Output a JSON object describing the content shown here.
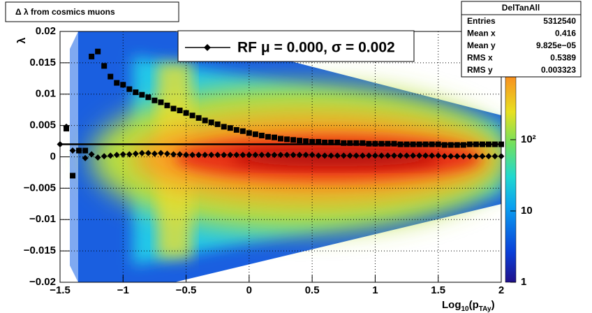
{
  "chart_data": {
    "type": "scatter",
    "title": "Δ λ from cosmics muons",
    "y_label": "λ",
    "x_label_parts": [
      "Log",
      "10",
      "(p",
      "TAy",
      ")"
    ],
    "x": [
      -1.5,
      -1.45,
      -1.4,
      -1.35,
      -1.3,
      -1.25,
      -1.2,
      -1.15,
      -1.1,
      -1.05,
      -1,
      -0.95,
      -0.9,
      -0.85,
      -0.8,
      -0.75,
      -0.7,
      -0.65,
      -0.6,
      -0.55,
      -0.5,
      -0.45,
      -0.4,
      -0.35,
      -0.3,
      -0.25,
      -0.2,
      -0.15,
      -0.1,
      -0.05,
      0,
      0.05,
      0.1,
      0.15,
      0.2,
      0.25,
      0.3,
      0.35,
      0.4,
      0.45,
      0.5,
      0.55,
      0.6,
      0.65,
      0.7,
      0.75,
      0.8,
      0.85,
      0.9,
      0.95,
      1,
      1.05,
      1.1,
      1.15,
      1.2,
      1.25,
      1.3,
      1.35,
      1.4,
      1.45,
      1.5,
      1.55,
      1.6,
      1.65,
      1.7,
      1.75,
      1.8,
      1.85,
      1.9,
      1.95,
      2
    ],
    "series": [
      {
        "name": "RF μ =  0.000, σ =   0.002",
        "marker": "diamond",
        "color": "#000000",
        "values": [
          0.002,
          0.0048,
          0.001,
          0.001,
          -0.0002,
          0.0004,
          -0.0001,
          0.0001,
          0.0002,
          0.0003,
          0.0004,
          0.0004,
          0.0005,
          0.0006,
          0.0006,
          0.0005,
          0.0006,
          0.0005,
          0.0004,
          0.0004,
          0.0003,
          0.0003,
          0.0003,
          0.0003,
          0.0003,
          0.0003,
          0.0003,
          0.0003,
          0.0003,
          0.0003,
          0.0003,
          0.0003,
          0.0003,
          0.0003,
          0.0003,
          0.0003,
          0.0003,
          0.0003,
          0.0003,
          0.0003,
          0.0003,
          0.0002,
          0.0002,
          0.0002,
          0.0002,
          0.0002,
          0.0002,
          0.0002,
          0.0002,
          0.0002,
          0.0002,
          0.0002,
          0.0002,
          0.0002,
          0.0002,
          0.0002,
          0.0002,
          0.0002,
          0.0002,
          0.0002,
          0.0002,
          0.0001,
          0.0001,
          0.0001,
          0.0001,
          0.0001,
          0.0001,
          0.0001,
          0.0001,
          0.0001,
          0.0001
        ]
      },
      {
        "marker": "square",
        "color": "#000000",
        "values": [
          null,
          0.0045,
          -0.003,
          0.001,
          0.001,
          0.016,
          0.0168,
          0.0145,
          0.0128,
          0.0118,
          0.0115,
          0.0108,
          0.0103,
          0.0099,
          0.0095,
          0.009,
          0.0087,
          0.0082,
          0.0077,
          0.0074,
          0.007,
          0.0066,
          0.0062,
          0.0058,
          0.0055,
          0.0052,
          0.0048,
          0.0046,
          0.0043,
          0.0041,
          0.0038,
          0.0036,
          0.0034,
          0.0032,
          0.0031,
          0.0029,
          0.0028,
          0.0027,
          0.0026,
          0.0025,
          0.0024,
          0.0024,
          0.0023,
          0.0023,
          0.0023,
          0.0022,
          0.0022,
          0.0022,
          0.0022,
          0.0021,
          0.0021,
          0.0021,
          0.0021,
          0.0021,
          0.002,
          0.002,
          0.002,
          0.002,
          0.002,
          0.002,
          0.002,
          0.0019,
          0.0019,
          0.0019,
          0.0019,
          0.002,
          0.002,
          0.002,
          0.002,
          0.002,
          0.002
        ]
      }
    ],
    "reference_line": 0.002,
    "xlim": [
      -1.5,
      2
    ],
    "ylim": [
      -0.02,
      0.02
    ],
    "xticks": [
      {
        "value": -1.5,
        "label": "−1.5"
      },
      {
        "value": -1,
        "label": "−1"
      },
      {
        "value": -0.5,
        "label": "−0.5"
      },
      0,
      0.5,
      1,
      1.5,
      2
    ],
    "yticks": [
      {
        "value": -0.02,
        "label": "−0.02"
      },
      {
        "value": -0.015,
        "label": "−0.015"
      },
      {
        "value": -0.01,
        "label": "−0.01"
      },
      {
        "value": -0.005,
        "label": "−0.005"
      },
      0,
      0.005,
      0.01,
      0.015,
      0.02
    ],
    "grid": true,
    "zlim": [
      1,
      3300
    ],
    "zlog": true,
    "zticks": [
      1,
      10,
      {
        "value": 100,
        "label": "10²"
      }
    ],
    "stats": {
      "title": "DelTanAll",
      "rows": [
        [
          "Entries",
          "5312540"
        ],
        [
          "Mean x",
          "0.416"
        ],
        [
          "Mean y",
          "9.825e−05"
        ],
        [
          "RMS x",
          "0.5389"
        ],
        [
          "RMS y",
          "0.003323"
        ]
      ]
    }
  }
}
